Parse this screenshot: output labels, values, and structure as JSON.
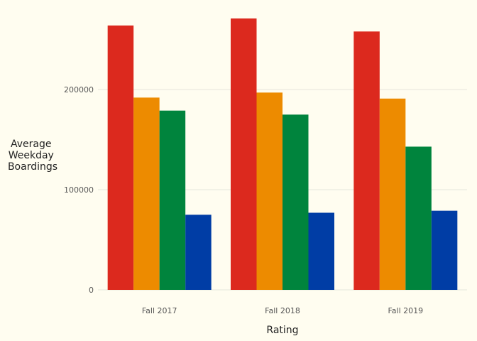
{
  "chart_data": {
    "type": "bar",
    "categories": [
      "Fall 2017",
      "Fall 2018",
      "Fall 2019"
    ],
    "series": [
      {
        "values": [
          264000,
          271000,
          258000
        ],
        "color": "#dc291e"
      },
      {
        "values": [
          192000,
          197000,
          191000
        ],
        "color": "#ed8b00"
      },
      {
        "values": [
          179000,
          175000,
          143000
        ],
        "color": "#00843d"
      },
      {
        "values": [
          75000,
          77000,
          79000
        ],
        "color": "#003da5"
      }
    ],
    "xlabel": "Rating",
    "ylabel_lines": [
      "Average",
      "Weekday",
      "Boardings"
    ],
    "ylim": [
      0,
      271000
    ],
    "yticks": [
      0,
      100000,
      200000
    ],
    "ytick_labels": [
      "0",
      "100000",
      "200000"
    ],
    "grid": true,
    "background": "#fffdf0"
  }
}
